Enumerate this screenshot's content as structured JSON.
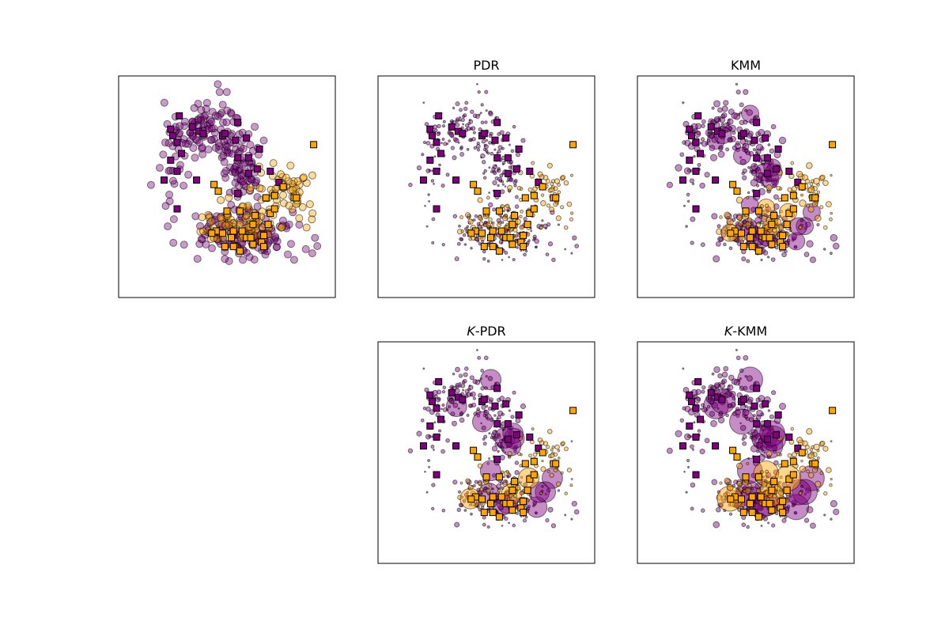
{
  "colors": {
    "source": "#800080",
    "target": "#FFA500",
    "edge": "#000000",
    "frame": "#000000",
    "background": "#ffffff"
  },
  "panels": [
    {
      "id": "original",
      "title": ""
    },
    {
      "id": "pdr",
      "title": "PDR"
    },
    {
      "id": "kmm",
      "title": "KMM"
    },
    {
      "id": "k-pdr",
      "title_prefix": "K",
      "title_suffix": "-PDR"
    },
    {
      "id": "k-kmm",
      "title_prefix": "K",
      "title_suffix": "-KMM"
    }
  ],
  "chart_data": {
    "type": "scatter",
    "description_of_axes": "no ticks, no axis labels",
    "xlim": [
      0,
      100
    ],
    "ylim": [
      0,
      100
    ],
    "grid": false,
    "legend": false,
    "labeled_squares": {
      "source": [
        [
          28,
          82
        ],
        [
          24,
          76
        ],
        [
          25,
          73
        ],
        [
          34,
          77
        ],
        [
          37,
          75
        ],
        [
          39,
          74
        ],
        [
          48,
          73
        ],
        [
          49,
          74
        ],
        [
          55,
          79
        ],
        [
          54,
          71
        ],
        [
          59,
          72
        ],
        [
          65,
          67
        ],
        [
          60,
          63
        ],
        [
          64,
          58
        ],
        [
          70,
          57
        ],
        [
          74,
          52
        ],
        [
          60,
          56
        ],
        [
          55,
          63
        ],
        [
          27,
          70
        ],
        [
          29,
          65
        ],
        [
          24,
          62
        ],
        [
          27,
          57
        ],
        [
          21,
          53
        ],
        [
          36,
          53
        ],
        [
          55,
          47
        ],
        [
          27,
          40
        ]
      ],
      "target": [
        [
          90,
          69
        ],
        [
          76,
          50
        ],
        [
          72,
          46
        ],
        [
          68,
          45
        ],
        [
          81,
          45
        ],
        [
          82,
          45
        ],
        [
          44,
          51
        ],
        [
          46,
          48
        ],
        [
          50,
          39
        ],
        [
          56,
          39
        ],
        [
          70,
          38
        ],
        [
          72,
          40
        ],
        [
          63,
          37
        ],
        [
          62,
          33
        ],
        [
          69,
          33
        ],
        [
          57,
          30
        ],
        [
          53,
          30
        ],
        [
          48,
          29
        ],
        [
          45,
          30
        ],
        [
          43,
          29
        ],
        [
          52,
          27
        ],
        [
          59,
          27
        ],
        [
          61,
          27
        ],
        [
          66,
          25
        ],
        [
          62,
          24
        ],
        [
          53,
          23
        ],
        [
          49,
          23
        ],
        [
          56,
          21
        ],
        [
          67,
          23
        ],
        [
          67,
          28
        ]
      ]
    },
    "panels_weights": {
      "original": "uniform",
      "pdr": "small weights, larger near target region",
      "kmm": "varied weights, large on outlying source points",
      "k-pdr": "varied weights",
      "k-kmm": "varied weights, largest on outlying source points"
    }
  }
}
